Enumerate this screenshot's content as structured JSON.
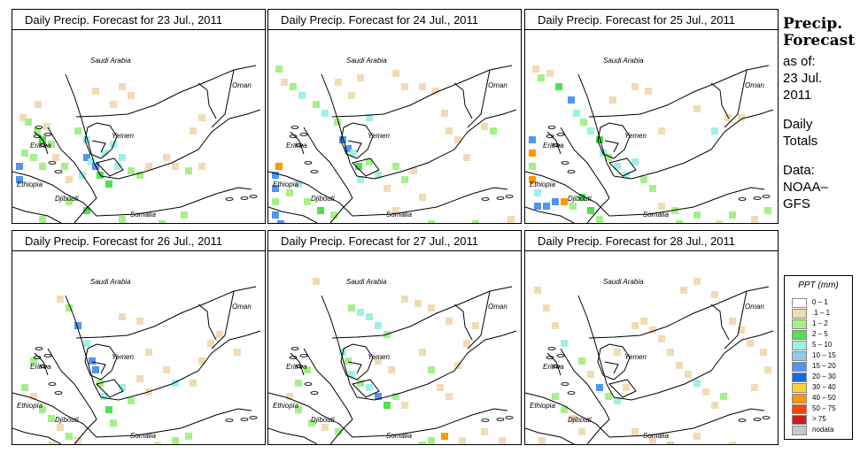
{
  "panels": [
    {
      "title": "Daily Precip. Forecast for  23 Jul., 2011",
      "cells": [
        [
          8,
          95,
          "lt"
        ],
        [
          14,
          100,
          "lg"
        ],
        [
          24,
          110,
          "lg"
        ],
        [
          30,
          120,
          "g"
        ],
        [
          40,
          125,
          "lg"
        ],
        [
          10,
          135,
          "lg"
        ],
        [
          20,
          140,
          "lg"
        ],
        [
          4,
          150,
          "b"
        ],
        [
          4,
          165,
          "b"
        ],
        [
          30,
          150,
          "lg"
        ],
        [
          45,
          140,
          "lt"
        ],
        [
          55,
          150,
          "lg"
        ],
        [
          60,
          165,
          "lt"
        ],
        [
          75,
          160,
          "c"
        ],
        [
          80,
          140,
          "b"
        ],
        [
          85,
          145,
          "c"
        ],
        [
          90,
          150,
          "b"
        ],
        [
          95,
          160,
          "g"
        ],
        [
          100,
          135,
          "c"
        ],
        [
          105,
          170,
          "g"
        ],
        [
          110,
          125,
          "c"
        ],
        [
          115,
          150,
          "c"
        ],
        [
          80,
          120,
          "c"
        ],
        [
          70,
          110,
          "lg"
        ],
        [
          120,
          140,
          "c"
        ],
        [
          130,
          155,
          "lg"
        ],
        [
          140,
          160,
          "lg"
        ],
        [
          150,
          150,
          "lt"
        ],
        [
          170,
          140,
          "lt"
        ],
        [
          180,
          150,
          "lt"
        ],
        [
          195,
          155,
          "lg"
        ],
        [
          200,
          110,
          "lt"
        ],
        [
          210,
          95,
          "lt"
        ],
        [
          90,
          65,
          "lt"
        ],
        [
          120,
          60,
          "lt"
        ],
        [
          130,
          70,
          "lt"
        ],
        [
          110,
          80,
          "lt"
        ],
        [
          30,
          210,
          "lg"
        ],
        [
          60,
          190,
          "lg"
        ],
        [
          80,
          200,
          "g"
        ],
        [
          120,
          210,
          "lg"
        ],
        [
          165,
          215,
          "lg"
        ],
        [
          190,
          205,
          "lg"
        ],
        [
          210,
          150,
          "lt"
        ],
        [
          25,
          80,
          "lt"
        ],
        [
          35,
          105,
          "lt"
        ]
      ]
    },
    {
      "title": "Daily Precip. Forecast for  24 Jul., 2011",
      "cells": [
        [
          8,
          40,
          "lg"
        ],
        [
          14,
          55,
          "lt"
        ],
        [
          24,
          60,
          "lg"
        ],
        [
          34,
          70,
          "c"
        ],
        [
          50,
          80,
          "lg"
        ],
        [
          60,
          90,
          "c"
        ],
        [
          74,
          100,
          "lg"
        ],
        [
          80,
          120,
          "b"
        ],
        [
          86,
          130,
          "b"
        ],
        [
          92,
          135,
          "c"
        ],
        [
          98,
          150,
          "g"
        ],
        [
          8,
          150,
          "o"
        ],
        [
          4,
          160,
          "b"
        ],
        [
          4,
          175,
          "b"
        ],
        [
          4,
          190,
          "lg"
        ],
        [
          4,
          205,
          "b"
        ],
        [
          10,
          215,
          "b"
        ],
        [
          20,
          180,
          "lg"
        ],
        [
          30,
          170,
          "c"
        ],
        [
          40,
          190,
          "lg"
        ],
        [
          55,
          200,
          "g"
        ],
        [
          70,
          205,
          "lg"
        ],
        [
          100,
          165,
          "c"
        ],
        [
          110,
          145,
          "lg"
        ],
        [
          120,
          160,
          "c"
        ],
        [
          130,
          175,
          "lt"
        ],
        [
          140,
          150,
          "lg"
        ],
        [
          150,
          165,
          "lg"
        ],
        [
          160,
          155,
          "lt"
        ],
        [
          170,
          185,
          "lt"
        ],
        [
          200,
          110,
          "lt"
        ],
        [
          210,
          120,
          "lt"
        ],
        [
          220,
          140,
          "lt"
        ],
        [
          90,
          70,
          "lt"
        ],
        [
          100,
          50,
          "lt"
        ],
        [
          140,
          45,
          "lt"
        ],
        [
          150,
          60,
          "lt"
        ],
        [
          170,
          60,
          "lt"
        ],
        [
          185,
          65,
          "lt"
        ],
        [
          195,
          90,
          "lt"
        ],
        [
          240,
          105,
          "lt"
        ],
        [
          250,
          110,
          "lg"
        ],
        [
          270,
          210,
          "lt"
        ],
        [
          230,
          215,
          "lg"
        ],
        [
          180,
          215,
          "lg"
        ],
        [
          140,
          200,
          "lt"
        ],
        [
          75,
          55,
          "lt"
        ],
        [
          110,
          95,
          "c"
        ]
      ]
    },
    {
      "title": "Daily Precip. Forecast for  25 Jul., 2011",
      "cells": [
        [
          8,
          40,
          "lt"
        ],
        [
          14,
          50,
          "lg"
        ],
        [
          24,
          45,
          "lt"
        ],
        [
          34,
          60,
          "g"
        ],
        [
          48,
          75,
          "b"
        ],
        [
          54,
          90,
          "c"
        ],
        [
          62,
          100,
          "lg"
        ],
        [
          70,
          110,
          "c"
        ],
        [
          80,
          120,
          "g"
        ],
        [
          84,
          135,
          "c"
        ],
        [
          90,
          140,
          "lg"
        ],
        [
          100,
          150,
          "c"
        ],
        [
          4,
          120,
          "b"
        ],
        [
          4,
          135,
          "o"
        ],
        [
          4,
          150,
          "lg"
        ],
        [
          4,
          165,
          "o"
        ],
        [
          10,
          180,
          "c"
        ],
        [
          10,
          195,
          "b"
        ],
        [
          20,
          195,
          "b"
        ],
        [
          30,
          190,
          "b"
        ],
        [
          40,
          190,
          "o"
        ],
        [
          50,
          195,
          "lg"
        ],
        [
          60,
          185,
          "g"
        ],
        [
          70,
          200,
          "g"
        ],
        [
          80,
          210,
          "lg"
        ],
        [
          110,
          160,
          "c"
        ],
        [
          120,
          145,
          "c"
        ],
        [
          130,
          165,
          "lg"
        ],
        [
          140,
          175,
          "lg"
        ],
        [
          150,
          195,
          "lt"
        ],
        [
          165,
          200,
          "lg"
        ],
        [
          170,
          215,
          "lg"
        ],
        [
          190,
          205,
          "lg"
        ],
        [
          215,
          215,
          "lt"
        ],
        [
          230,
          205,
          "lg"
        ],
        [
          255,
          210,
          "lt"
        ],
        [
          270,
          200,
          "lg"
        ],
        [
          210,
          110,
          "c"
        ],
        [
          225,
          95,
          "lt"
        ],
        [
          240,
          95,
          "lt"
        ],
        [
          190,
          85,
          "lt"
        ],
        [
          120,
          60,
          "lt"
        ],
        [
          135,
          65,
          "lt"
        ],
        [
          95,
          75,
          "lt"
        ],
        [
          150,
          110,
          "lt"
        ]
      ]
    },
    {
      "title": "Daily Precip. Forecast for  26 Jul., 2011",
      "cells": [
        [
          50,
          50,
          "lt"
        ],
        [
          60,
          60,
          "lg"
        ],
        [
          70,
          80,
          "b"
        ],
        [
          80,
          100,
          "c"
        ],
        [
          86,
          120,
          "b"
        ],
        [
          90,
          130,
          "b"
        ],
        [
          95,
          145,
          "lg"
        ],
        [
          100,
          160,
          "c"
        ],
        [
          105,
          175,
          "g"
        ],
        [
          110,
          190,
          "lg"
        ],
        [
          20,
          120,
          "lg"
        ],
        [
          10,
          150,
          "lg"
        ],
        [
          20,
          160,
          "lt"
        ],
        [
          30,
          175,
          "lg"
        ],
        [
          40,
          185,
          "lg"
        ],
        [
          50,
          195,
          "lt"
        ],
        [
          60,
          205,
          "lg"
        ],
        [
          70,
          210,
          "lt"
        ],
        [
          40,
          215,
          "lt"
        ],
        [
          120,
          150,
          "c"
        ],
        [
          130,
          165,
          "lg"
        ],
        [
          140,
          140,
          "lt"
        ],
        [
          150,
          155,
          "lt"
        ],
        [
          170,
          130,
          "lt"
        ],
        [
          180,
          145,
          "c"
        ],
        [
          200,
          145,
          "lt"
        ],
        [
          210,
          120,
          "lt"
        ],
        [
          220,
          100,
          "lt"
        ],
        [
          195,
          205,
          "lg"
        ],
        [
          200,
          220,
          "b"
        ],
        [
          180,
          210,
          "lg"
        ],
        [
          160,
          215,
          "lt"
        ],
        [
          120,
          70,
          "lt"
        ],
        [
          140,
          75,
          "lt"
        ],
        [
          150,
          110,
          "lt"
        ],
        [
          250,
          110,
          "lt"
        ],
        [
          230,
          90,
          "lt"
        ]
      ]
    },
    {
      "title": "Daily Precip. Forecast for  27 Jul., 2011",
      "cells": [
        [
          50,
          30,
          "lt"
        ],
        [
          90,
          60,
          "lg"
        ],
        [
          100,
          65,
          "c"
        ],
        [
          110,
          70,
          "c"
        ],
        [
          120,
          80,
          "c"
        ],
        [
          130,
          90,
          "lg"
        ],
        [
          80,
          110,
          "c"
        ],
        [
          86,
          120,
          "lg"
        ],
        [
          90,
          135,
          "c"
        ],
        [
          100,
          145,
          "lg"
        ],
        [
          110,
          150,
          "c"
        ],
        [
          120,
          160,
          "b"
        ],
        [
          130,
          170,
          "g"
        ],
        [
          140,
          160,
          "lg"
        ],
        [
          150,
          170,
          "lt"
        ],
        [
          40,
          130,
          "lg"
        ],
        [
          30,
          145,
          "lg"
        ],
        [
          20,
          160,
          "lt"
        ],
        [
          30,
          175,
          "lg"
        ],
        [
          45,
          190,
          "lg"
        ],
        [
          60,
          195,
          "lt"
        ],
        [
          75,
          200,
          "lg"
        ],
        [
          170,
          110,
          "lt"
        ],
        [
          180,
          130,
          "lg"
        ],
        [
          190,
          150,
          "lt"
        ],
        [
          200,
          160,
          "lt"
        ],
        [
          210,
          125,
          "lt"
        ],
        [
          220,
          100,
          "lt"
        ],
        [
          230,
          80,
          "lt"
        ],
        [
          150,
          50,
          "lt"
        ],
        [
          165,
          55,
          "lt"
        ],
        [
          180,
          60,
          "lt"
        ],
        [
          200,
          75,
          "lt"
        ],
        [
          195,
          205,
          "o"
        ],
        [
          180,
          210,
          "lg"
        ],
        [
          170,
          215,
          "lg"
        ],
        [
          215,
          210,
          "lt"
        ],
        [
          240,
          200,
          "lt"
        ],
        [
          260,
          210,
          "lt"
        ],
        [
          120,
          120,
          "lt"
        ],
        [
          135,
          130,
          "lt"
        ]
      ]
    },
    {
      "title": "Daily Precip. Forecast for  28 Jul., 2011",
      "cells": [
        [
          10,
          40,
          "lt"
        ],
        [
          20,
          60,
          "lt"
        ],
        [
          30,
          80,
          "lt"
        ],
        [
          40,
          100,
          "c"
        ],
        [
          60,
          120,
          "lg"
        ],
        [
          70,
          135,
          "lt"
        ],
        [
          80,
          150,
          "b"
        ],
        [
          90,
          160,
          "lg"
        ],
        [
          100,
          165,
          "c"
        ],
        [
          110,
          150,
          "lt"
        ],
        [
          120,
          80,
          "lt"
        ],
        [
          130,
          75,
          "lt"
        ],
        [
          140,
          85,
          "lt"
        ],
        [
          150,
          95,
          "lt"
        ],
        [
          160,
          110,
          "lt"
        ],
        [
          170,
          125,
          "lt"
        ],
        [
          180,
          135,
          "lt"
        ],
        [
          190,
          145,
          "c"
        ],
        [
          200,
          155,
          "lt"
        ],
        [
          210,
          170,
          "lt"
        ],
        [
          220,
          160,
          "lg"
        ],
        [
          230,
          75,
          "lt"
        ],
        [
          240,
          85,
          "lt"
        ],
        [
          250,
          100,
          "lt"
        ],
        [
          265,
          110,
          "lt"
        ],
        [
          270,
          130,
          "lt"
        ],
        [
          255,
          150,
          "lt"
        ],
        [
          30,
          160,
          "lg"
        ],
        [
          40,
          175,
          "lg"
        ],
        [
          50,
          185,
          "lt"
        ],
        [
          60,
          200,
          "lt"
        ],
        [
          15,
          210,
          "lt"
        ],
        [
          120,
          200,
          "lt"
        ],
        [
          140,
          210,
          "lt"
        ],
        [
          160,
          215,
          "lg"
        ],
        [
          190,
          205,
          "lt"
        ],
        [
          230,
          215,
          "lt"
        ],
        [
          175,
          40,
          "lt"
        ],
        [
          190,
          30,
          "lt"
        ],
        [
          210,
          45,
          "lt"
        ],
        [
          100,
          110,
          "lt"
        ]
      ]
    }
  ],
  "map_labels": {
    "saudi": "Saudi Arabia",
    "oman": "Oman",
    "yemen": "Yemen",
    "eritrea": "Eritrea",
    "ethiopia": "Ethiopia",
    "djibouti": "Djibouti",
    "somalia": "Somalia"
  },
  "side": {
    "title_line1": "Precip.",
    "title_line2": "Forecast",
    "asof_label": "as of:",
    "asof_date_line1": "23 Jul.",
    "asof_date_line2": "2011",
    "totals_line1": "Daily",
    "totals_line2": "Totals",
    "data_line1": "Data:",
    "data_line2": "NOAA–",
    "data_line3": "GFS"
  },
  "legend": {
    "title": "PPT (mm)",
    "items": [
      {
        "label": "0 – 1",
        "color": "#ffffff"
      },
      {
        "label": ".1 – 1",
        "color": "#f0dcb4"
      },
      {
        "label": "1 – 2",
        "color": "#a6f08a"
      },
      {
        "label": "2 – 5",
        "color": "#50e050"
      },
      {
        "label": "5 – 10",
        "color": "#a0f0e6"
      },
      {
        "label": "10 – 15",
        "color": "#96c8f0"
      },
      {
        "label": "15 – 20",
        "color": "#5096f0"
      },
      {
        "label": "20 – 30",
        "color": "#1e64e6"
      },
      {
        "label": "30 – 40",
        "color": "#ffd23c"
      },
      {
        "label": "40 – 50",
        "color": "#ff9600"
      },
      {
        "label": "50 – 75",
        "color": "#ff4600"
      },
      {
        "label": "> 75",
        "color": "#c81e1e"
      },
      {
        "label": "nodata",
        "color": "#c8c8c8"
      }
    ]
  },
  "colors": {
    "lt": "#f0dcb4",
    "lg": "#a6f08a",
    "g": "#50e050",
    "c": "#a0f0e6",
    "b": "#5096f0",
    "o": "#ff9600"
  }
}
